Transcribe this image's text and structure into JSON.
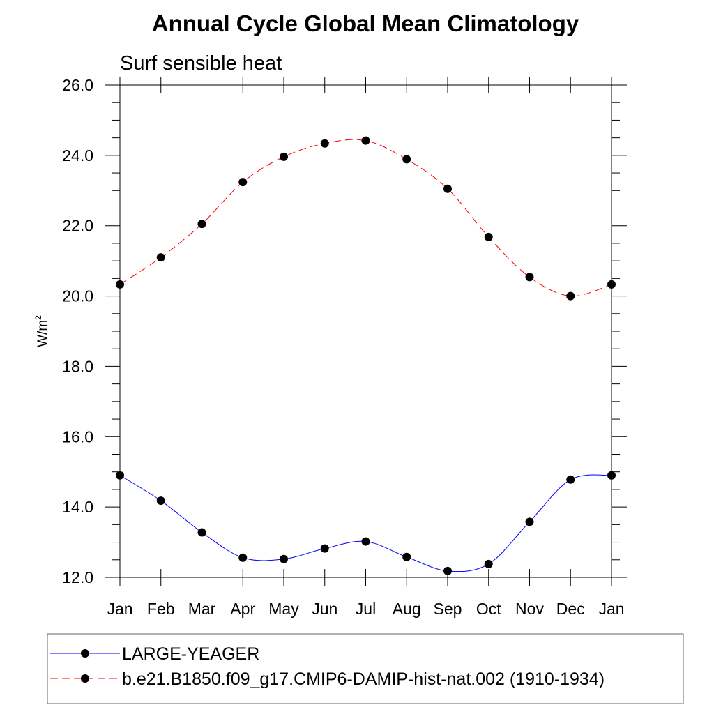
{
  "chart_data": {
    "type": "line",
    "title": "Annual Cycle Global Mean Climatology",
    "subtitle": "Surf sensible heat",
    "xlabel": "",
    "ylabel": "W/m",
    "ylabel_superscript": "2",
    "categories": [
      "Jan",
      "Feb",
      "Mar",
      "Apr",
      "May",
      "Jun",
      "Jul",
      "Aug",
      "Sep",
      "Oct",
      "Nov",
      "Dec",
      "Jan"
    ],
    "ylim": [
      12.0,
      26.0
    ],
    "yticks": [
      "12.0",
      "14.0",
      "16.0",
      "18.0",
      "20.0",
      "22.0",
      "24.0",
      "26.0"
    ],
    "grid": false,
    "legend_position": "bottom",
    "series": [
      {
        "name": "LARGE-YEAGER",
        "color": "#0000ff",
        "style": "solid",
        "values": [
          14.9,
          14.18,
          13.28,
          12.56,
          12.52,
          12.82,
          13.02,
          12.58,
          12.18,
          12.38,
          13.58,
          14.78,
          14.9
        ]
      },
      {
        "name": "b.e21.B1850.f09_g17.CMIP6-DAMIP-hist-nat.002 (1910-1934)",
        "color": "#ff0000",
        "style": "dashed",
        "values": [
          20.33,
          21.1,
          22.05,
          23.24,
          23.96,
          24.34,
          24.42,
          23.89,
          23.05,
          21.68,
          20.54,
          20.0,
          20.33
        ]
      }
    ]
  }
}
